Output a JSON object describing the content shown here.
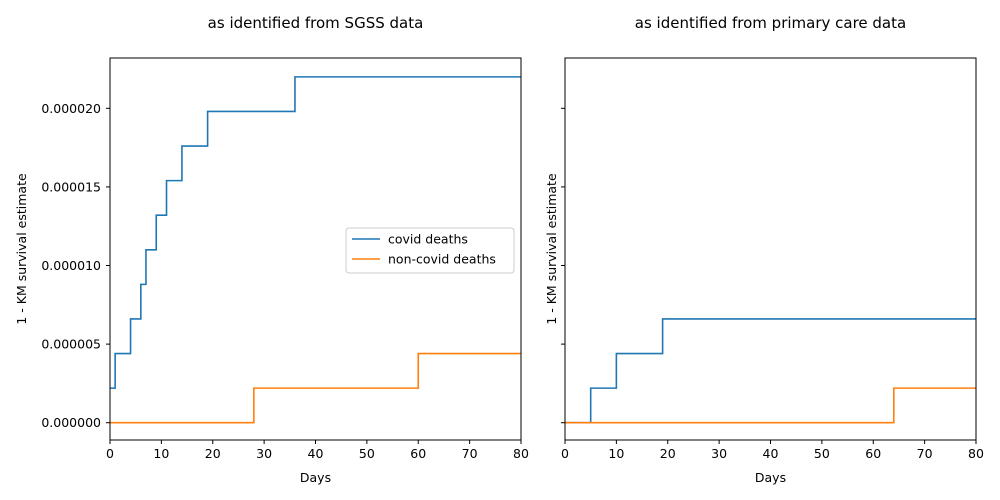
{
  "chart_data": [
    {
      "type": "line",
      "step": "post",
      "title": "as identified from SGSS data",
      "xlabel": "Days",
      "ylabel": "1 - KM survival estimate",
      "xlim": [
        0,
        80
      ],
      "ylim": [
        -1.1e-06,
        2.32e-05
      ],
      "xticks": [
        0,
        10,
        20,
        30,
        40,
        50,
        60,
        70,
        80
      ],
      "xtick_labels": [
        "0",
        "10",
        "20",
        "30",
        "40",
        "50",
        "60",
        "70",
        "80"
      ],
      "yticks": [
        0,
        5e-06,
        1e-05,
        1.5e-05,
        2e-05
      ],
      "ytick_labels": [
        "0.000000",
        "0.000005",
        "0.000010",
        "0.000015",
        "0.000020"
      ],
      "grid": false,
      "legend": "center right",
      "series": [
        {
          "name": "covid deaths",
          "color": "#1f77b4",
          "x": [
            0,
            1,
            4,
            6,
            7,
            9,
            11,
            14,
            19,
            36,
            80
          ],
          "y": [
            2.2e-06,
            4.4e-06,
            6.6e-06,
            8.8e-06,
            1.1e-05,
            1.32e-05,
            1.54e-05,
            1.76e-05,
            1.98e-05,
            2.2e-05,
            2.2e-05
          ]
        },
        {
          "name": "non-covid deaths",
          "color": "#ff7f0e",
          "x": [
            0,
            28,
            60,
            80
          ],
          "y": [
            0,
            2.2e-06,
            4.4e-06,
            4.4e-06
          ]
        }
      ]
    },
    {
      "type": "line",
      "step": "post",
      "title": "as identified from primary care data",
      "xlabel": "Days",
      "ylabel": "1 - KM survival estimate",
      "xlim": [
        0,
        80
      ],
      "ylim": [
        -1.1e-06,
        2.32e-05
      ],
      "xticks": [
        0,
        10,
        20,
        30,
        40,
        50,
        60,
        70,
        80
      ],
      "xtick_labels": [
        "0",
        "10",
        "20",
        "30",
        "40",
        "50",
        "60",
        "70",
        "80"
      ],
      "yticks": [
        0,
        5e-06,
        1e-05,
        1.5e-05,
        2e-05
      ],
      "ytick_labels": [
        "",
        "",
        "",
        "",
        ""
      ],
      "grid": false,
      "legend": "none",
      "series": [
        {
          "color": "#1f77b4",
          "x": [
            0,
            5,
            10,
            19,
            80
          ],
          "y": [
            0,
            2.2e-06,
            4.4e-06,
            6.6e-06,
            6.6e-06
          ]
        },
        {
          "color": "#ff7f0e",
          "x": [
            0,
            64,
            80
          ],
          "y": [
            0,
            2.2e-06,
            2.2e-06
          ]
        }
      ]
    }
  ]
}
